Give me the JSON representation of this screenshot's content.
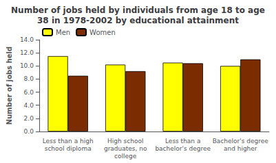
{
  "chart_data": {
    "type": "bar",
    "title": "Number of jobs held by individuals from age 18 to age\n38 in 1978-2002 by educational attainment",
    "ylabel": "Number of jobs held",
    "categories": [
      "Less than a high\nschool diploma",
      "High school\ngraduates, no\ncollege",
      "Less than a\nbachelor's degree",
      "Bachelor's degree\nand higher"
    ],
    "series": [
      {
        "name": "Men",
        "color": "#FFFF00",
        "values": [
          11.5,
          10.2,
          10.5,
          10.0
        ]
      },
      {
        "name": "Women",
        "color": "#7B2C00",
        "values": [
          8.5,
          9.2,
          10.4,
          11.0
        ]
      }
    ],
    "ylim": [
      0,
      14.0
    ],
    "yticks": [
      {
        "value": 0,
        "label": "0.0"
      },
      {
        "value": 2,
        "label": "2.0"
      },
      {
        "value": 4,
        "label": "4.0"
      },
      {
        "value": 6,
        "label": "6.0"
      },
      {
        "value": 8,
        "label": "8.0"
      },
      {
        "value": 10,
        "label": "10.0"
      },
      {
        "value": 12,
        "label": "12.0"
      },
      {
        "value": 14,
        "label": "14.0"
      }
    ],
    "grid": false,
    "legend": "upper left"
  }
}
